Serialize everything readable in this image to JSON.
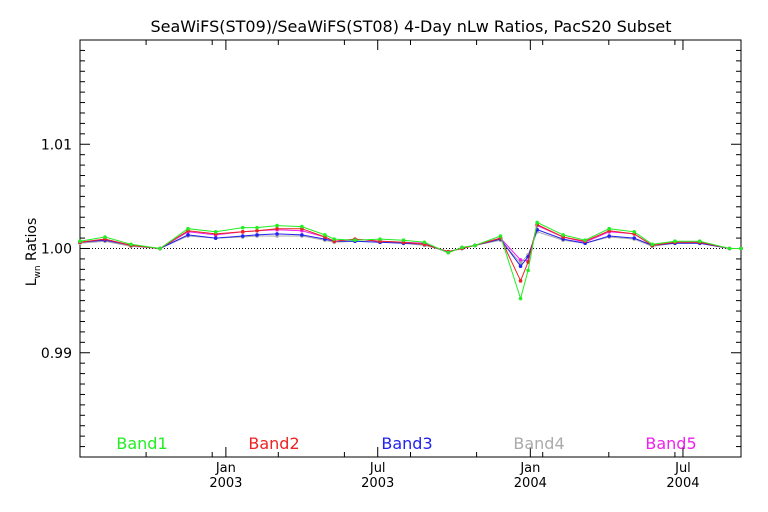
{
  "chart_data": {
    "type": "line",
    "title": "SeaWiFS(ST09)/SeaWiFS(ST08) 4-Day nLw Ratios, PacS20 Subset",
    "ylabel_main": "L",
    "ylabel_sub": "wn",
    "ylabel_rest": " Ratios",
    "y_ticks": [
      {
        "value": 0.99,
        "label": "0.99"
      },
      {
        "value": 1.0,
        "label": "1.00"
      },
      {
        "value": 1.01,
        "label": "1.01"
      }
    ],
    "ylim": [
      0.98,
      1.02
    ],
    "xlim": [
      0.0,
      1.0
    ],
    "reference_value": 1.0,
    "x_ticks": [
      {
        "x": 0.2207,
        "month": "Jan",
        "year": "2003"
      },
      {
        "x": 0.4504,
        "month": "Jul",
        "year": "2003"
      },
      {
        "x": 0.6813,
        "month": "Jan",
        "year": "2004"
      },
      {
        "x": 0.9122,
        "month": "Jul",
        "year": "2004"
      }
    ],
    "x_minor_ticks": [
      0.1,
      0.2,
      0.3,
      0.4,
      0.5,
      0.6,
      0.7,
      0.8,
      0.9
    ],
    "x": [
      0.0,
      0.0378,
      0.0771,
      0.121,
      0.1634,
      0.2053,
      0.2462,
      0.2678,
      0.2981,
      0.3357,
      0.3705,
      0.3846,
      0.416,
      0.4539,
      0.4894,
      0.5211,
      0.557,
      0.5779,
      0.5976,
      0.6362,
      0.6665,
      0.6779,
      0.6916,
      0.7309,
      0.7642,
      0.8006,
      0.8385,
      0.8657,
      0.9001,
      0.9376,
      0.9826,
      1.0
    ],
    "series": [
      {
        "name": "Band1",
        "color": "#22ee22",
        "values": [
          1.0007,
          1.0011,
          1.0004,
          1.0,
          1.0019,
          1.0016,
          1.002,
          1.002,
          1.0022,
          1.0021,
          1.0013,
          1.0009,
          1.0008,
          1.0009,
          1.0008,
          1.0006,
          0.9996,
          1.0001,
          1.0003,
          1.0012,
          0.9952,
          0.9979,
          1.0025,
          1.0013,
          1.0008,
          1.0019,
          1.0016,
          1.0004,
          1.0007,
          1.0007,
          1.0,
          1.0
        ]
      },
      {
        "name": "Band2",
        "color": "#ee2222",
        "values": [
          1.0006,
          1.0009,
          1.0003,
          1.0,
          1.0017,
          1.0014,
          1.0016,
          1.0017,
          1.0019,
          1.0019,
          1.0011,
          1.0007,
          1.0009,
          1.0007,
          1.0006,
          1.0004,
          0.9997,
          1.0,
          1.0003,
          1.001,
          0.9969,
          0.9987,
          1.0023,
          1.0011,
          1.0007,
          1.0017,
          1.0014,
          1.0003,
          1.0006,
          1.0006,
          1.0,
          1.0
        ]
      },
      {
        "name": "Band3",
        "color": "#2222ee",
        "values": [
          1.0006,
          1.0008,
          1.0003,
          1.0,
          1.0013,
          1.001,
          1.0012,
          1.0013,
          1.0014,
          1.0013,
          1.0009,
          1.0007,
          1.0007,
          1.0006,
          1.0005,
          1.0004,
          0.9997,
          1.0,
          1.0003,
          1.0009,
          0.9983,
          0.9992,
          1.0018,
          1.0009,
          1.0005,
          1.0012,
          1.001,
          1.0003,
          1.0005,
          1.0005,
          1.0,
          1.0
        ]
      },
      {
        "name": "Band4",
        "color": "#aaaaaa",
        "values": [
          1.0005,
          1.0007,
          1.0002,
          1.0,
          1.0012,
          1.001,
          1.0011,
          1.0012,
          1.0012,
          1.0012,
          1.0008,
          1.0006,
          1.0007,
          1.0006,
          1.0005,
          1.0003,
          0.9997,
          1.0,
          1.0003,
          1.0008,
          0.9986,
          0.9994,
          1.0016,
          1.0008,
          1.0005,
          1.0011,
          1.0009,
          1.0002,
          1.0005,
          1.0005,
          1.0,
          1.0
        ]
      },
      {
        "name": "Band5",
        "color": "#ee22ee",
        "values": [
          1.0006,
          1.0009,
          1.0003,
          1.0,
          1.0016,
          1.0013,
          1.0016,
          1.0017,
          1.0018,
          1.0017,
          1.0011,
          1.0007,
          1.0009,
          1.0007,
          1.0006,
          1.0005,
          0.9996,
          1.0001,
          1.0003,
          1.001,
          0.9989,
          0.9988,
          1.0022,
          1.0011,
          1.0006,
          1.0016,
          1.0014,
          1.0003,
          1.0006,
          1.0006,
          1.0,
          1.0
        ]
      }
    ]
  }
}
